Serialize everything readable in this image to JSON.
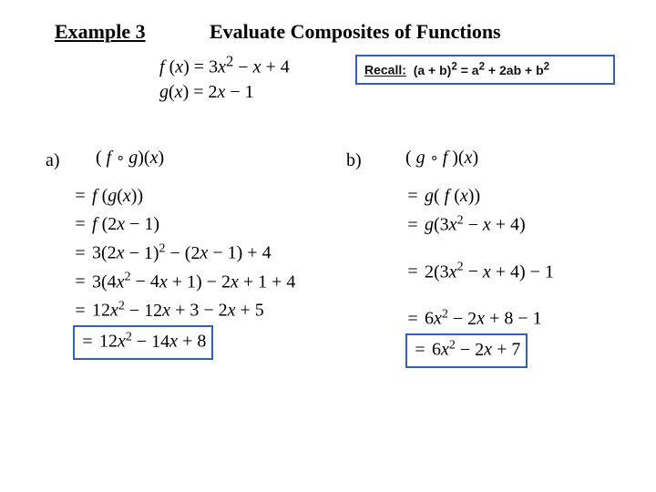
{
  "colors": {
    "box_border": "#3060c0",
    "text": "#000000",
    "background": "#ffffff"
  },
  "fonts": {
    "main": "Times New Roman",
    "recall": "Comic Sans MS"
  },
  "header": {
    "example_label": "Example 3",
    "title": "Evaluate Composites of Functions"
  },
  "definitions": {
    "f": "f (x) = 3x² − x + 4",
    "g": "g(x) = 2x − 1"
  },
  "recall": {
    "label": "Recall:",
    "formula": "(a + b)² = a² + 2ab + b²"
  },
  "parts": {
    "a": {
      "label": "a)",
      "expr": "( f ∘ g)(x)",
      "steps": [
        "= f (g(x))",
        "= f (2x − 1)",
        "= 3(2x − 1)² − (2x − 1) + 4",
        "= 3(4x² − 4x + 1) − 2x + 1 + 4",
        "= 12x² − 12x + 3 − 2x + 5"
      ],
      "answer": "= 12x² − 14x + 8"
    },
    "b": {
      "label": "b)",
      "expr": "( g ∘ f )(x)",
      "steps": [
        "= g( f (x))",
        "= g(3x² − x + 4)",
        "= 2(3x² − x + 4) − 1",
        "= 6x² − 2x + 8 − 1"
      ],
      "answer": "= 6x² − 2x + 7"
    }
  }
}
